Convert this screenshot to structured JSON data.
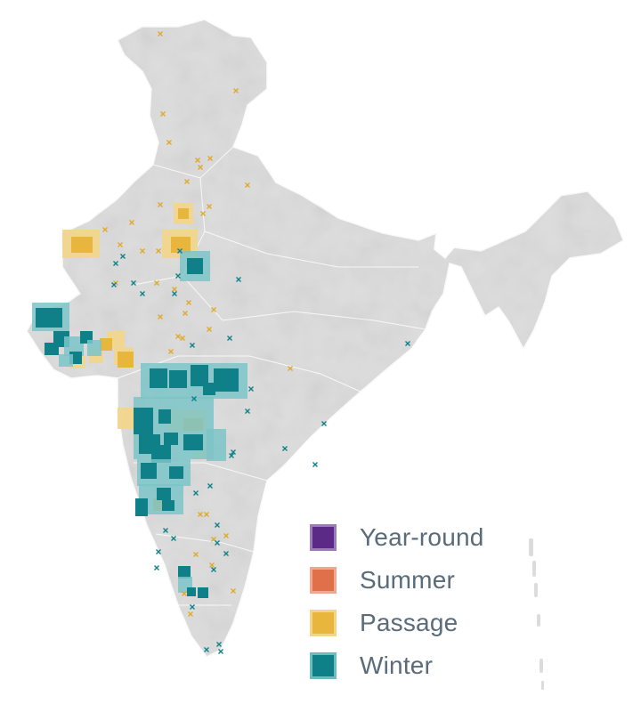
{
  "legend": {
    "items": [
      {
        "key": "year_round",
        "label": "Year-round",
        "fill": "#5b2a86",
        "border": "#9c7bb9"
      },
      {
        "key": "summer",
        "label": "Summer",
        "fill": "#e0704a",
        "border": "#efa88f"
      },
      {
        "key": "passage",
        "label": "Passage",
        "fill": "#e8b63c",
        "border": "#f3d48b"
      },
      {
        "key": "winter",
        "label": "Winter",
        "fill": "#0f8088",
        "border": "#6cbcc0"
      }
    ]
  },
  "colors": {
    "land": "#dcdcdc",
    "land_shade": "#c8c8c8",
    "background": "#ffffff",
    "passage_cell": "#e8b63c",
    "winter_cell": "#0f8088",
    "winter_cell_light": "#7cc4c8",
    "passage_cell_light": "#f2d68e",
    "passage_marker": "#e0a92c",
    "winter_marker": "#0f8088"
  }
}
